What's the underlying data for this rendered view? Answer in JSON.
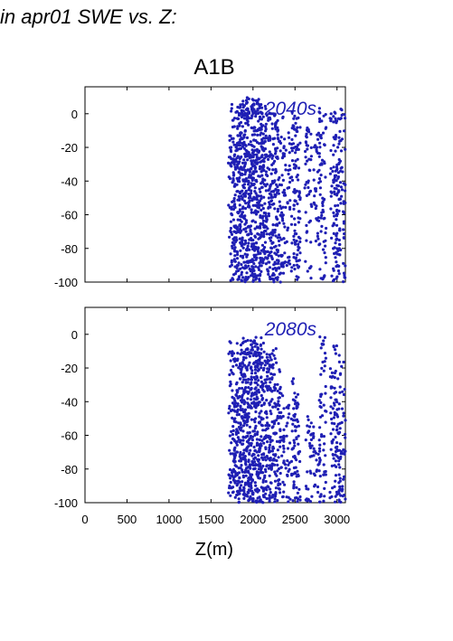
{
  "header": {
    "title": "in apr01 SWE vs. Z:"
  },
  "chart_data": {
    "type": "scatter",
    "title": "A1B",
    "xlabel": "Z(m)",
    "ylabel": "",
    "xlim": [
      0,
      3100
    ],
    "ylim": [
      -100,
      16
    ],
    "xticks": [
      0,
      500,
      1000,
      1500,
      2000,
      2500,
      3000
    ],
    "yticks": [
      0,
      -20,
      -40,
      -60,
      -80,
      -100
    ],
    "grid": false,
    "marker_color": "#1f1fb4",
    "panels": [
      {
        "label": "2040s",
        "columns": [
          {
            "x": 1750,
            "ymin": -100,
            "ymax": 6
          },
          {
            "x": 1780,
            "ymin": -100,
            "ymax": 4
          },
          {
            "x": 1820,
            "ymin": -100,
            "ymax": 2
          },
          {
            "x": 1850,
            "ymin": -100,
            "ymax": 8
          },
          {
            "x": 1880,
            "ymin": -100,
            "ymax": 12
          },
          {
            "x": 1910,
            "ymin": -100,
            "ymax": 10
          },
          {
            "x": 1940,
            "ymin": -100,
            "ymax": 12
          },
          {
            "x": 1970,
            "ymin": -100,
            "ymax": 9
          },
          {
            "x": 2000,
            "ymin": -100,
            "ymax": 11
          },
          {
            "x": 2030,
            "ymin": -100,
            "ymax": 12
          },
          {
            "x": 2060,
            "ymin": -100,
            "ymax": 8
          },
          {
            "x": 2090,
            "ymin": -100,
            "ymax": 6
          },
          {
            "x": 2120,
            "ymin": -100,
            "ymax": 5
          },
          {
            "x": 2160,
            "ymin": -100,
            "ymax": 4
          },
          {
            "x": 2200,
            "ymin": -100,
            "ymax": 3
          },
          {
            "x": 2240,
            "ymin": -100,
            "ymax": 2
          },
          {
            "x": 2280,
            "ymin": -100,
            "ymax": 1
          },
          {
            "x": 2330,
            "ymin": -100,
            "ymax": 0
          },
          {
            "x": 2400,
            "ymin": -95,
            "ymax": -10
          },
          {
            "x": 2500,
            "ymin": -100,
            "ymax": 2
          },
          {
            "x": 2520,
            "ymin": -98,
            "ymax": -5
          },
          {
            "x": 2660,
            "ymin": -100,
            "ymax": -8
          },
          {
            "x": 2760,
            "ymin": -80,
            "ymax": -10
          },
          {
            "x": 2830,
            "ymin": -100,
            "ymax": 4
          },
          {
            "x": 2960,
            "ymin": -100,
            "ymax": 0
          },
          {
            "x": 3000,
            "ymin": -100,
            "ymax": 3
          },
          {
            "x": 3060,
            "ymin": -100,
            "ymax": 5
          }
        ]
      },
      {
        "label": "2080s",
        "columns": [
          {
            "x": 1750,
            "ymin": -100,
            "ymax": -2
          },
          {
            "x": 1780,
            "ymin": -100,
            "ymax": -10
          },
          {
            "x": 1820,
            "ymin": -100,
            "ymax": -15
          },
          {
            "x": 1850,
            "ymin": -100,
            "ymax": -5
          },
          {
            "x": 1880,
            "ymin": -100,
            "ymax": -8
          },
          {
            "x": 1910,
            "ymin": -100,
            "ymax": -2
          },
          {
            "x": 1940,
            "ymin": -100,
            "ymax": -4
          },
          {
            "x": 1970,
            "ymin": -100,
            "ymax": -1
          },
          {
            "x": 2000,
            "ymin": -100,
            "ymax": -3
          },
          {
            "x": 2030,
            "ymin": -100,
            "ymax": -1
          },
          {
            "x": 2060,
            "ymin": -100,
            "ymax": -2
          },
          {
            "x": 2090,
            "ymin": -100,
            "ymax": -6
          },
          {
            "x": 2120,
            "ymin": -100,
            "ymax": -2
          },
          {
            "x": 2160,
            "ymin": -100,
            "ymax": -10
          },
          {
            "x": 2200,
            "ymin": -100,
            "ymax": -12
          },
          {
            "x": 2240,
            "ymin": -100,
            "ymax": -5
          },
          {
            "x": 2280,
            "ymin": -100,
            "ymax": -20
          },
          {
            "x": 2330,
            "ymin": -100,
            "ymax": -30
          },
          {
            "x": 2400,
            "ymin": -100,
            "ymax": -40
          },
          {
            "x": 2500,
            "ymin": -100,
            "ymax": -25
          },
          {
            "x": 2520,
            "ymin": -100,
            "ymax": -35
          },
          {
            "x": 2660,
            "ymin": -100,
            "ymax": -45
          },
          {
            "x": 2760,
            "ymin": -100,
            "ymax": -50
          },
          {
            "x": 2830,
            "ymin": -100,
            "ymax": 0
          },
          {
            "x": 2960,
            "ymin": -100,
            "ymax": -20
          },
          {
            "x": 3000,
            "ymin": -100,
            "ymax": -5
          },
          {
            "x": 3060,
            "ymin": -100,
            "ymax": -15
          }
        ]
      }
    ]
  }
}
